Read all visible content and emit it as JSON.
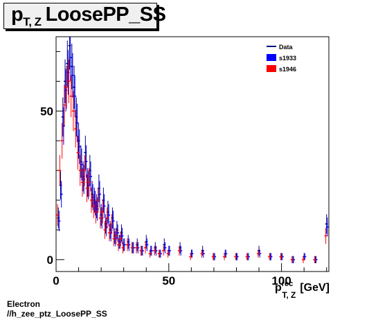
{
  "title": {
    "main": "p",
    "sub": "T, Z",
    "suffix": "LoosePP_SS"
  },
  "footer": {
    "line1": "Electron",
    "line2": "//h_zee_ptz_LoosePP_SS"
  },
  "chart_data": {
    "type": "scatter",
    "xlabel": {
      "main": "p",
      "sup": "rec",
      "sub": "T, Z",
      "unit": "[GeV]"
    },
    "xlim": [
      0,
      121
    ],
    "ylim": [
      -4,
      75
    ],
    "x_ticks": [
      0,
      50,
      100
    ],
    "y_ticks": [
      0,
      50
    ],
    "grid": false,
    "legend_position": "top-right",
    "colors": {
      "Data": "#000080",
      "s1933": "#0000ff",
      "s1946": "#ff0000"
    },
    "series": [
      {
        "name": "Data",
        "style": "errorbar",
        "x": [
          1,
          2,
          3,
          4,
          5,
          6,
          7,
          8,
          9,
          10,
          11,
          12,
          13,
          14,
          15,
          16,
          17,
          18,
          19,
          20,
          21,
          22,
          23,
          24,
          25,
          26,
          27,
          28,
          29,
          30,
          32,
          34,
          36,
          38,
          40,
          42,
          44,
          46,
          48,
          50,
          55,
          60,
          65,
          70,
          75,
          80,
          85,
          90,
          95,
          100,
          105,
          110,
          115,
          120
        ],
        "y": [
          14,
          25,
          48,
          60,
          66,
          72,
          65,
          58,
          48,
          40,
          33,
          28,
          36,
          26,
          30,
          22,
          20,
          18,
          24,
          15,
          20,
          12,
          16,
          10,
          14,
          8,
          10,
          6,
          9,
          5,
          6,
          4,
          5,
          3,
          6,
          3,
          4,
          2,
          5,
          3,
          4,
          2,
          3,
          1,
          2,
          1,
          1,
          3,
          1,
          1,
          0,
          1,
          0,
          12
        ]
      },
      {
        "name": "s1933",
        "style": "errorbar",
        "x": [
          1,
          2,
          3,
          4,
          5,
          6,
          7,
          8,
          9,
          10,
          11,
          12,
          13,
          14,
          15,
          16,
          17,
          18,
          19,
          20,
          21,
          22,
          23,
          24,
          25,
          26,
          27,
          28,
          29,
          30,
          32,
          34,
          36,
          38,
          40,
          42,
          44,
          46,
          48,
          50,
          55,
          60,
          65,
          70,
          75,
          80,
          85,
          90,
          95,
          100,
          105,
          110,
          115,
          120
        ],
        "y": [
          13,
          22,
          45,
          57,
          63,
          68,
          62,
          55,
          46,
          38,
          32,
          27,
          33,
          25,
          28,
          21,
          19,
          17,
          22,
          14,
          18,
          11,
          15,
          9,
          13,
          7,
          9,
          6,
          8,
          5,
          5,
          4,
          4,
          3,
          5,
          3,
          3,
          2,
          4,
          3,
          3,
          2,
          2,
          1,
          2,
          1,
          1,
          2,
          1,
          1,
          0,
          1,
          0,
          11
        ]
      },
      {
        "name": "s1946",
        "style": "errorbar",
        "x": [
          1,
          2,
          3,
          4,
          5,
          6,
          7,
          8,
          9,
          10,
          11,
          12,
          13,
          14,
          15,
          16,
          17,
          18,
          19,
          20,
          21,
          22,
          23,
          24,
          25,
          26,
          27,
          28,
          29,
          30,
          32,
          34,
          36,
          38,
          40,
          42,
          44,
          46,
          48,
          50,
          55,
          60,
          65,
          70,
          75,
          80,
          85,
          90,
          95,
          100,
          105,
          110,
          115,
          120
        ],
        "y": [
          15,
          30,
          40,
          52,
          58,
          60,
          55,
          50,
          44,
          36,
          30,
          26,
          30,
          24,
          26,
          20,
          18,
          16,
          20,
          14,
          16,
          10,
          14,
          9,
          12,
          7,
          8,
          5,
          7,
          4,
          5,
          4,
          4,
          3,
          4,
          2,
          3,
          2,
          3,
          2,
          3,
          1,
          2,
          1,
          1,
          1,
          1,
          2,
          1,
          1,
          0,
          0,
          0,
          8
        ]
      }
    ],
    "legend": [
      {
        "name": "Data",
        "symbol": "line"
      },
      {
        "name": "s1933",
        "symbol": "box"
      },
      {
        "name": "s1946",
        "symbol": "box"
      }
    ]
  }
}
